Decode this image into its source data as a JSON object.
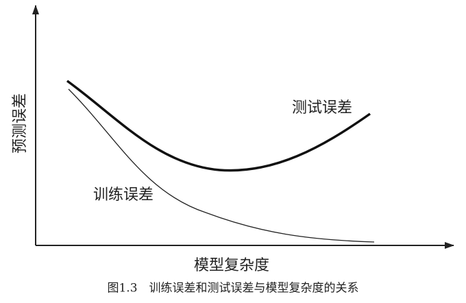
{
  "axes": {
    "y_label": "预测误差",
    "x_label": "模型复杂度"
  },
  "curves": {
    "test": "测试误差",
    "train": "训练误差"
  },
  "caption": "图1.3　训练误差和测试误差与模型复杂度的关系"
}
